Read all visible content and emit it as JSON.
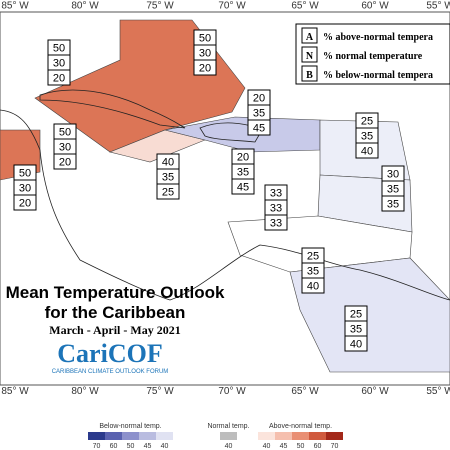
{
  "longitudes": [
    "85° W",
    "80° W",
    "75° W",
    "70° W",
    "65° W",
    "60° W",
    "55° W"
  ],
  "key": [
    {
      "letter": "A",
      "text": "% above-normal tempera"
    },
    {
      "letter": "N",
      "text": "% normal temperature"
    },
    {
      "letter": "B",
      "text": "% below-normal tempera"
    }
  ],
  "regions": [
    {
      "values": [
        50,
        30,
        20
      ]
    },
    {
      "values": [
        50,
        30,
        20
      ]
    },
    {
      "values": [
        50,
        30,
        20
      ]
    },
    {
      "values": [
        50,
        30,
        20
      ]
    },
    {
      "values": [
        20,
        35,
        45
      ]
    },
    {
      "values": [
        40,
        35,
        25
      ]
    },
    {
      "values": [
        20,
        35,
        45
      ]
    },
    {
      "values": [
        25,
        35,
        40
      ]
    },
    {
      "values": [
        30,
        35,
        35
      ]
    },
    {
      "values": [
        33,
        33,
        33
      ]
    },
    {
      "values": [
        25,
        35,
        40
      ]
    },
    {
      "values": [
        25,
        35,
        40
      ]
    }
  ],
  "title": {
    "line1": "Mean Temperature Outlook",
    "line2": "for the Caribbean",
    "period": "March - April - May 2021"
  },
  "logo": {
    "name": "CariCOF",
    "tagline": "CARIBBEAN CLIMATE OUTLOOK FORUM"
  },
  "colorbar": {
    "below": {
      "label": "Below-normal temp.",
      "ticks": [
        70,
        60,
        50,
        45,
        40
      ]
    },
    "normal": {
      "label": "Normal temp.",
      "ticks": [
        40
      ]
    },
    "above": {
      "label": "Above-normal temp.",
      "ticks": [
        40,
        45,
        50,
        60,
        70
      ]
    }
  }
}
